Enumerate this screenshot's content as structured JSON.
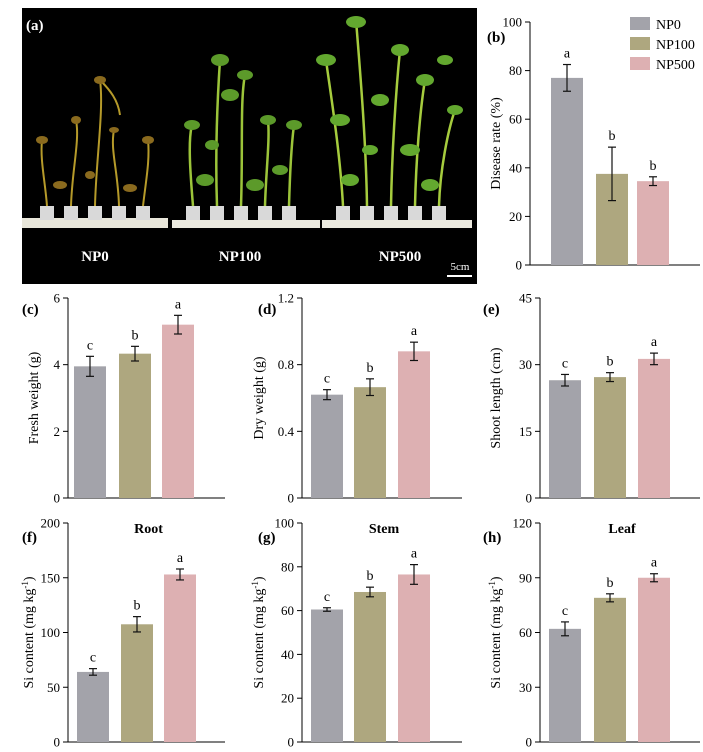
{
  "legend": [
    {
      "name": "NP0",
      "color": "#a3a3aa"
    },
    {
      "name": "NP100",
      "color": "#aea77f"
    },
    {
      "name": "NP500",
      "color": "#ddb0b2"
    }
  ],
  "photo": {
    "panel_label": "(a)",
    "labels": [
      "NP0",
      "NP100",
      "NP500"
    ],
    "scale_bar": "5cm"
  },
  "chart_data": [
    {
      "id": "b",
      "type": "bar",
      "panel_label": "(b)",
      "title": "",
      "xlabel": "",
      "ylabel": "Disease rate (%)",
      "ylim": [
        0,
        100
      ],
      "ticks": [
        0,
        20,
        40,
        60,
        80,
        100
      ],
      "categories": [
        "NP0",
        "NP100",
        "NP500"
      ],
      "values": [
        77,
        37.5,
        34.5
      ],
      "errors": [
        5.5,
        11,
        1.8
      ],
      "letters": [
        "a",
        "b",
        "b"
      ]
    },
    {
      "id": "c",
      "type": "bar",
      "panel_label": "(c)",
      "title": "",
      "xlabel": "",
      "ylabel": "Fresh weight (g)",
      "ylim": [
        0,
        6
      ],
      "ticks": [
        0,
        2,
        4,
        6
      ],
      "categories": [
        "NP0",
        "NP100",
        "NP500"
      ],
      "values": [
        3.95,
        4.33,
        5.2
      ],
      "errors": [
        0.3,
        0.22,
        0.28
      ],
      "letters": [
        "c",
        "b",
        "a"
      ]
    },
    {
      "id": "d",
      "type": "bar",
      "panel_label": "(d)",
      "title": "",
      "xlabel": "",
      "ylabel": "Dry weight (g)",
      "ylim": [
        0,
        1.2
      ],
      "ticks": [
        0,
        0.4,
        0.8,
        1.2
      ],
      "categories": [
        "NP0",
        "NP100",
        "NP500"
      ],
      "values": [
        0.62,
        0.665,
        0.88
      ],
      "errors": [
        0.03,
        0.05,
        0.055
      ],
      "letters": [
        "c",
        "b",
        "a"
      ]
    },
    {
      "id": "e",
      "type": "bar",
      "panel_label": "(e)",
      "title": "",
      "xlabel": "",
      "ylabel": "Shoot length (cm)",
      "ylim": [
        0,
        45
      ],
      "ticks": [
        0,
        15,
        30,
        45
      ],
      "categories": [
        "NP0",
        "NP100",
        "NP500"
      ],
      "values": [
        26.5,
        27.2,
        31.3
      ],
      "errors": [
        1.3,
        1.0,
        1.3
      ],
      "letters": [
        "c",
        "b",
        "a"
      ]
    },
    {
      "id": "f",
      "type": "bar",
      "panel_label": "(f)",
      "title": "Root",
      "xlabel": "",
      "ylabel": "Si content (mg kg",
      "ylabel_sup": "-1",
      "ylabel_end": ")",
      "ylim": [
        0,
        200
      ],
      "ticks": [
        0,
        50,
        100,
        150,
        200
      ],
      "categories": [
        "NP0",
        "NP100",
        "NP500"
      ],
      "values": [
        64,
        107.5,
        153
      ],
      "errors": [
        3,
        7,
        5
      ],
      "letters": [
        "c",
        "b",
        "a"
      ]
    },
    {
      "id": "g",
      "type": "bar",
      "panel_label": "(g)",
      "title": "Stem",
      "xlabel": "",
      "ylabel": "Si content (mg kg",
      "ylabel_sup": "-1",
      "ylabel_end": ")",
      "ylim": [
        0,
        100
      ],
      "ticks": [
        0,
        20,
        40,
        60,
        80,
        100
      ],
      "categories": [
        "NP0",
        "NP100",
        "NP500"
      ],
      "values": [
        60.5,
        68.5,
        76.5
      ],
      "errors": [
        0.8,
        2.2,
        4.5
      ],
      "letters": [
        "c",
        "b",
        "a"
      ]
    },
    {
      "id": "h",
      "type": "bar",
      "panel_label": "(h)",
      "title": "Leaf",
      "xlabel": "",
      "ylabel": "Si content (mg kg",
      "ylabel_sup": "-1",
      "ylabel_end": ")",
      "ylim": [
        0,
        120
      ],
      "ticks": [
        0,
        30,
        60,
        90,
        120
      ],
      "categories": [
        "NP0",
        "NP100",
        "NP500"
      ],
      "values": [
        62,
        79,
        90
      ],
      "errors": [
        3.8,
        2.2,
        2.2
      ],
      "letters": [
        "c",
        "b",
        "a"
      ]
    }
  ]
}
